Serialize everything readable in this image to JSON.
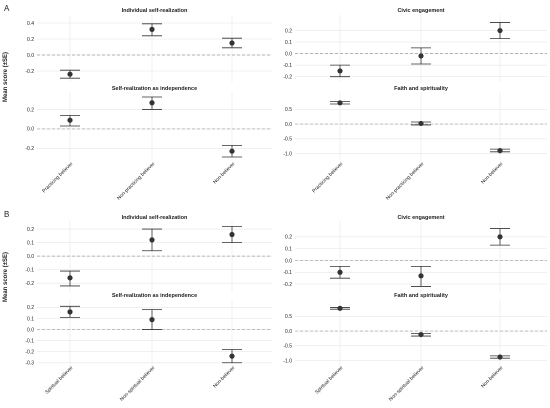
{
  "panels": [
    {
      "letter": "A",
      "ylabel": "Mean score (±SE)",
      "x_categories": [
        "Practicing believer",
        "Non-practicing believer",
        "Non-believer"
      ],
      "charts": [
        {
          "title": "Individual self-realization",
          "yticks": [
            "0.4",
            "0.2",
            "0.0",
            "-0.2"
          ],
          "ylim": [
            -0.3,
            0.45
          ],
          "points": [
            {
              "mean": -0.24,
              "lo": -0.29,
              "hi": -0.19
            },
            {
              "mean": 0.32,
              "lo": 0.24,
              "hi": 0.39
            },
            {
              "mean": 0.15,
              "lo": 0.09,
              "hi": 0.21
            }
          ]
        },
        {
          "title": "Civic engagement",
          "yticks": [
            "0.2",
            "0.1",
            "0.0",
            "-0.1",
            "-0.2"
          ],
          "ylim": [
            -0.22,
            0.3
          ],
          "points": [
            {
              "mean": -0.15,
              "lo": -0.2,
              "hi": -0.1
            },
            {
              "mean": -0.02,
              "lo": -0.09,
              "hi": 0.05
            },
            {
              "mean": 0.2,
              "lo": 0.13,
              "hi": 0.27
            }
          ]
        },
        {
          "title": "Self-realization as independence",
          "yticks": [
            "0.2",
            "0.0",
            "-0.2"
          ],
          "ylim": [
            -0.3,
            0.34
          ],
          "points": [
            {
              "mean": 0.09,
              "lo": 0.03,
              "hi": 0.14
            },
            {
              "mean": 0.27,
              "lo": 0.2,
              "hi": 0.33
            },
            {
              "mean": -0.23,
              "lo": -0.29,
              "hi": -0.17
            }
          ]
        },
        {
          "title": "Faith and spirituality",
          "yticks": [
            "0.5",
            "0.0",
            "-0.5",
            "-1.0"
          ],
          "ylim": [
            -1.15,
            0.95
          ],
          "points": [
            {
              "mean": 0.72,
              "lo": 0.68,
              "hi": 0.76
            },
            {
              "mean": 0.02,
              "lo": -0.03,
              "hi": 0.07
            },
            {
              "mean": -0.9,
              "lo": -0.94,
              "hi": -0.85
            }
          ]
        }
      ]
    },
    {
      "letter": "B",
      "ylabel": "Mean score (±SE)",
      "x_categories": [
        "Spiritual believer",
        "Non-spiritual believer",
        "Non-believer"
      ],
      "charts": [
        {
          "title": "Individual self-realization",
          "yticks": [
            "0.2",
            "0.1",
            "0.0",
            "-0.1",
            "-0.2"
          ],
          "ylim": [
            -0.25,
            0.23
          ],
          "points": [
            {
              "mean": -0.16,
              "lo": -0.22,
              "hi": -0.11
            },
            {
              "mean": 0.12,
              "lo": 0.04,
              "hi": 0.2
            },
            {
              "mean": 0.16,
              "lo": 0.1,
              "hi": 0.22
            }
          ]
        },
        {
          "title": "Civic engagement",
          "yticks": [
            "0.2",
            "0.1",
            "0.0",
            "-0.1",
            "-0.2"
          ],
          "ylim": [
            -0.25,
            0.3
          ],
          "points": [
            {
              "mean": -0.1,
              "lo": -0.15,
              "hi": -0.05
            },
            {
              "mean": -0.13,
              "lo": -0.22,
              "hi": -0.05
            },
            {
              "mean": 0.2,
              "lo": 0.13,
              "hi": 0.27
            }
          ]
        },
        {
          "title": "Self-realization as independence",
          "yticks": [
            "0.2",
            "0.1",
            "0.0",
            "-0.1",
            "-0.2",
            "-0.3"
          ],
          "ylim": [
            -0.32,
            0.24
          ],
          "points": [
            {
              "mean": 0.16,
              "lo": 0.11,
              "hi": 0.21
            },
            {
              "mean": 0.09,
              "lo": 0.0,
              "hi": 0.18
            },
            {
              "mean": -0.24,
              "lo": -0.3,
              "hi": -0.18
            }
          ]
        },
        {
          "title": "Faith and spirituality",
          "yticks": [
            "0.5",
            "0.0",
            "-0.5",
            "-1.0"
          ],
          "ylim": [
            -1.15,
            0.95
          ],
          "points": [
            {
              "mean": 0.77,
              "lo": 0.74,
              "hi": 0.8
            },
            {
              "mean": -0.12,
              "lo": -0.17,
              "hi": -0.08
            },
            {
              "mean": -0.88,
              "lo": -0.92,
              "hi": -0.84
            }
          ]
        }
      ]
    }
  ],
  "colors": {
    "point": "#333333",
    "grid": "#e6e6e6",
    "zero_line": "#9e9e9e",
    "text": "#222222"
  },
  "chart_data": [
    {
      "type": "scatter",
      "panel": "A",
      "title": "Individual self-realization",
      "categories": [
        "Practicing believer",
        "Non-practicing believer",
        "Non-believer"
      ],
      "values": [
        -0.24,
        0.32,
        0.15
      ],
      "errors": [
        [
          -0.29,
          -0.19
        ],
        [
          0.24,
          0.39
        ],
        [
          0.09,
          0.21
        ]
      ],
      "ylabel": "Mean score (±SE)"
    },
    {
      "type": "scatter",
      "panel": "A",
      "title": "Civic engagement",
      "categories": [
        "Practicing believer",
        "Non-practicing believer",
        "Non-believer"
      ],
      "values": [
        -0.15,
        -0.02,
        0.2
      ],
      "errors": [
        [
          -0.2,
          -0.1
        ],
        [
          -0.09,
          0.05
        ],
        [
          0.13,
          0.27
        ]
      ]
    },
    {
      "type": "scatter",
      "panel": "A",
      "title": "Self-realization as independence",
      "categories": [
        "Practicing believer",
        "Non-practicing believer",
        "Non-believer"
      ],
      "values": [
        0.09,
        0.27,
        -0.23
      ],
      "errors": [
        [
          0.03,
          0.14
        ],
        [
          0.2,
          0.33
        ],
        [
          -0.29,
          -0.17
        ]
      ],
      "ylabel": "Mean score (±SE)"
    },
    {
      "type": "scatter",
      "panel": "A",
      "title": "Faith and spirituality",
      "categories": [
        "Practicing believer",
        "Non-practicing believer",
        "Non-believer"
      ],
      "values": [
        0.72,
        0.02,
        -0.9
      ],
      "errors": [
        [
          0.68,
          0.76
        ],
        [
          -0.03,
          0.07
        ],
        [
          -0.94,
          -0.85
        ]
      ]
    },
    {
      "type": "scatter",
      "panel": "B",
      "title": "Individual self-realization",
      "categories": [
        "Spiritual believer",
        "Non-spiritual believer",
        "Non-believer"
      ],
      "values": [
        -0.16,
        0.12,
        0.16
      ],
      "errors": [
        [
          -0.22,
          -0.11
        ],
        [
          0.04,
          0.2
        ],
        [
          0.1,
          0.22
        ]
      ],
      "ylabel": "Mean score (±SE)"
    },
    {
      "type": "scatter",
      "panel": "B",
      "title": "Civic engagement",
      "categories": [
        "Spiritual believer",
        "Non-spiritual believer",
        "Non-believer"
      ],
      "values": [
        -0.1,
        -0.13,
        0.2
      ],
      "errors": [
        [
          -0.15,
          -0.05
        ],
        [
          -0.22,
          -0.05
        ],
        [
          0.13,
          0.27
        ]
      ]
    },
    {
      "type": "scatter",
      "panel": "B",
      "title": "Self-realization as independence",
      "categories": [
        "Spiritual believer",
        "Non-spiritual believer",
        "Non-believer"
      ],
      "values": [
        0.16,
        0.09,
        -0.24
      ],
      "errors": [
        [
          0.11,
          0.21
        ],
        [
          0.0,
          0.18
        ],
        [
          -0.3,
          -0.18
        ]
      ],
      "ylabel": "Mean score (±SE)"
    },
    {
      "type": "scatter",
      "panel": "B",
      "title": "Faith and spirituality",
      "categories": [
        "Spiritual believer",
        "Non-spiritual believer",
        "Non-believer"
      ],
      "values": [
        0.77,
        -0.12,
        -0.88
      ],
      "errors": [
        [
          0.74,
          0.8
        ],
        [
          -0.17,
          -0.08
        ],
        [
          -0.92,
          -0.84
        ]
      ]
    }
  ]
}
